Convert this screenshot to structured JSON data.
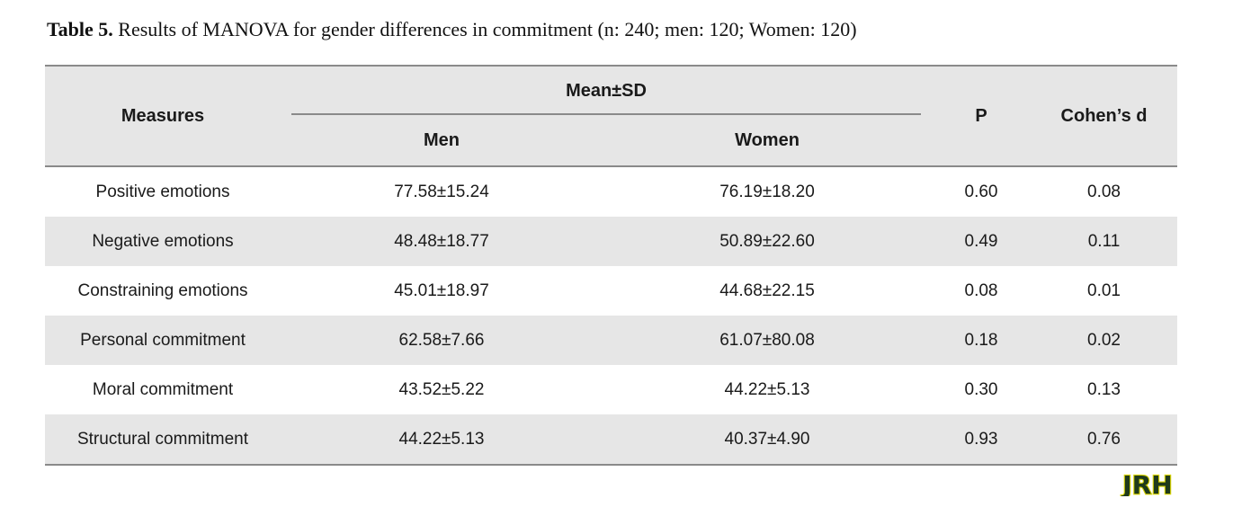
{
  "caption": {
    "label": "Table 5.",
    "text": " Results of MANOVA for gender differences in commitment (n: 240; men: 120; Women: 120)"
  },
  "table": {
    "headers": {
      "measures": "Measures",
      "mean_sd": "Mean±SD",
      "men": "Men",
      "women": "Women",
      "p": "P",
      "cohens_d": "Cohen’s d"
    },
    "rows": [
      {
        "measure": "Positive emotions",
        "men": "77.58±15.24",
        "women": "76.19±18.20",
        "p": "0.60",
        "d": "0.08"
      },
      {
        "measure": "Negative emotions",
        "men": "48.48±18.77",
        "women": "50.89±22.60",
        "p": "0.49",
        "d": "0.11"
      },
      {
        "measure": "Constraining emotions",
        "men": "45.01±18.97",
        "women": "44.68±22.15",
        "p": "0.08",
        "d": "0.01"
      },
      {
        "measure": "Personal commitment",
        "men": "62.58±7.66",
        "women": "61.07±80.08",
        "p": "0.18",
        "d": "0.02"
      },
      {
        "measure": "Moral commitment",
        "men": "43.52±5.22",
        "women": "44.22±5.13",
        "p": "0.30",
        "d": "0.13"
      },
      {
        "measure": "Structural commitment",
        "men": "44.22±5.13",
        "women": "40.37±4.90",
        "p": "0.93",
        "d": "0.76"
      }
    ]
  },
  "logo": {
    "text": "JRH",
    "fill_color": "#1f3a1c",
    "outline_color": "#d8d400"
  }
}
